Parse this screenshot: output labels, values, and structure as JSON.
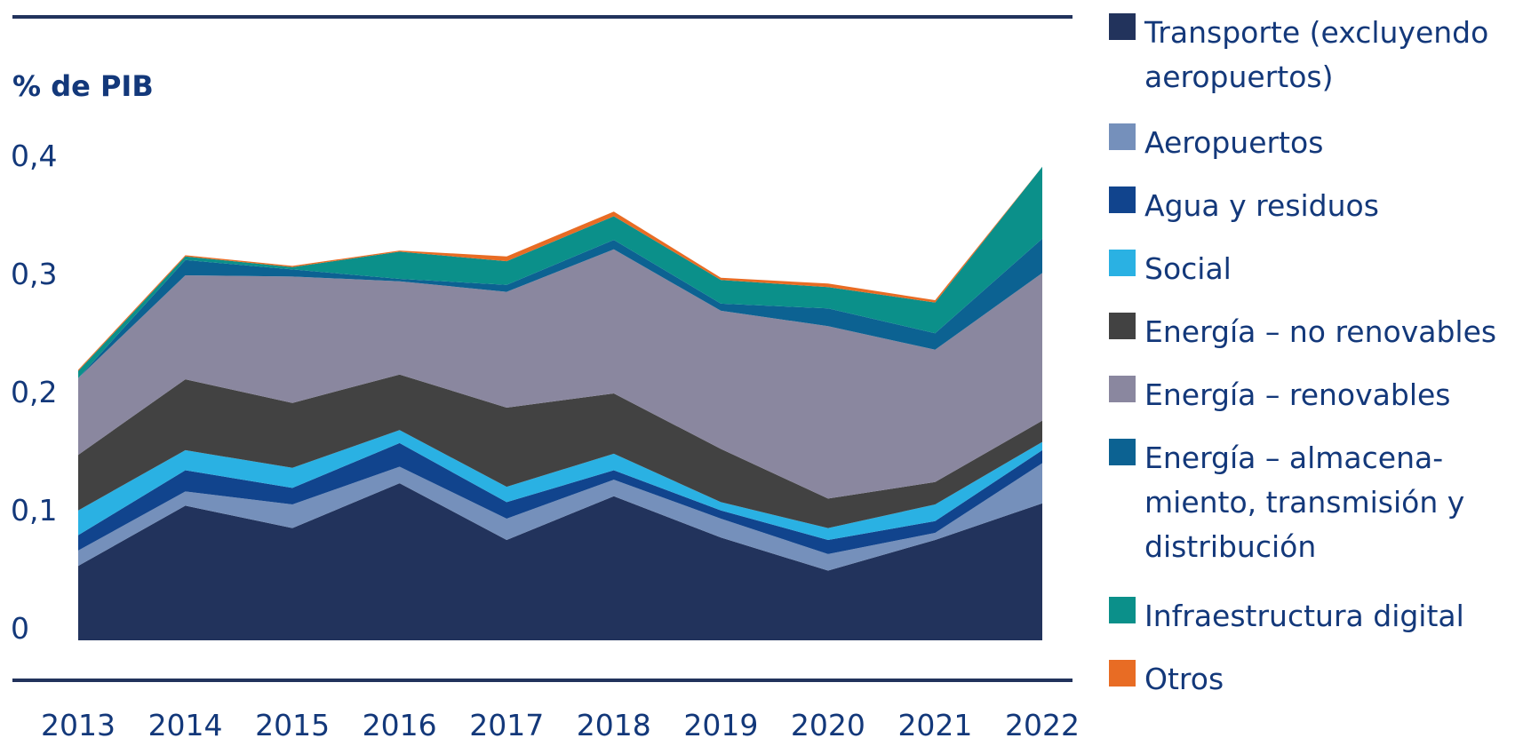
{
  "chart_data": {
    "type": "area",
    "stacked": true,
    "ylabel": "% de PIB",
    "x": [
      "2013",
      "2014",
      "2015",
      "2016",
      "2017",
      "2018",
      "2019",
      "2020",
      "2021",
      "2022"
    ],
    "y_ticks": [
      "0",
      "0,1",
      "0,2",
      "0,3",
      "0,4"
    ],
    "ylim": [
      0,
      0.4
    ],
    "grid": false,
    "legend_position": "right",
    "series": [
      {
        "name": "Transporte (excluyendo aeropuertos)",
        "color": "#22335c",
        "values": [
          0.063,
          0.114,
          0.095,
          0.133,
          0.085,
          0.122,
          0.087,
          0.059,
          0.085,
          0.116
        ]
      },
      {
        "name": "Aeropuertos",
        "color": "#7590bb",
        "values": [
          0.013,
          0.012,
          0.02,
          0.014,
          0.018,
          0.014,
          0.016,
          0.014,
          0.006,
          0.034
        ]
      },
      {
        "name": "Agua y residuos",
        "color": "#11448d",
        "values": [
          0.013,
          0.018,
          0.014,
          0.02,
          0.014,
          0.008,
          0.007,
          0.012,
          0.01,
          0.011
        ]
      },
      {
        "name": "Social",
        "color": "#2ab1e3",
        "values": [
          0.021,
          0.017,
          0.017,
          0.011,
          0.013,
          0.014,
          0.007,
          0.01,
          0.014,
          0.007
        ]
      },
      {
        "name": "Energía – no renovables",
        "color": "#424242",
        "values": [
          0.047,
          0.06,
          0.055,
          0.047,
          0.067,
          0.051,
          0.045,
          0.025,
          0.019,
          0.018
        ]
      },
      {
        "name": "Energía – renovables",
        "color": "#8a879f",
        "values": [
          0.065,
          0.088,
          0.107,
          0.079,
          0.098,
          0.122,
          0.117,
          0.146,
          0.112,
          0.125
        ]
      },
      {
        "name": "Energía – almacenamiento, transmisión y distribución",
        "color": "#0c6292",
        "values": [
          0.0,
          0.013,
          0.006,
          0.002,
          0.006,
          0.008,
          0.006,
          0.015,
          0.014,
          0.029
        ]
      },
      {
        "name": "Infraestructura digital",
        "color": "#0b908a",
        "values": [
          0.006,
          0.003,
          0.002,
          0.023,
          0.02,
          0.02,
          0.02,
          0.018,
          0.026,
          0.061
        ]
      },
      {
        "name": "Otros",
        "color": "#e86c24",
        "values": [
          0.001,
          0.001,
          0.001,
          0.001,
          0.004,
          0.004,
          0.002,
          0.003,
          0.002,
          0.0
        ]
      }
    ]
  },
  "legend": {
    "items": [
      {
        "label": "Transporte (excluyendo aeropuertos)",
        "color": "#22335c"
      },
      {
        "label": "Aeropuertos",
        "color": "#7590bb"
      },
      {
        "label": "Agua y residuos",
        "color": "#11448d"
      },
      {
        "label": "Social",
        "color": "#2ab1e3"
      },
      {
        "label": "Energía – no renovables",
        "color": "#424242"
      },
      {
        "label": "Energía – renovables",
        "color": "#8a879f"
      },
      {
        "label": "Energía – almacena-miento, transmisión y distribución",
        "color": "#0c6292"
      },
      {
        "label": "Infraestructura digital",
        "color": "#0b908a"
      },
      {
        "label": "Otros",
        "color": "#e86c24"
      }
    ]
  },
  "colors": {
    "text": "#13387a",
    "rule": "#22335c"
  }
}
